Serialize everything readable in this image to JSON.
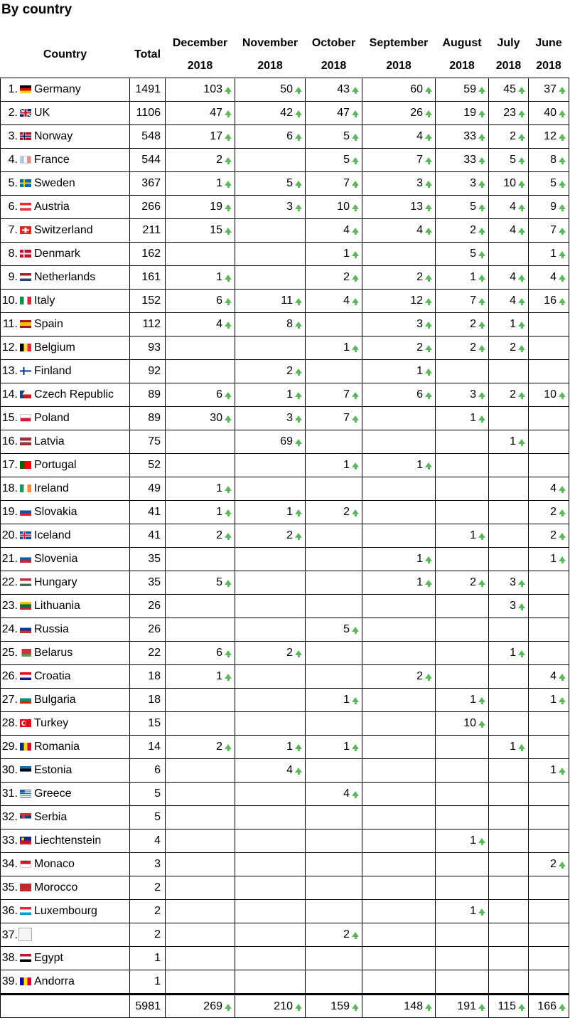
{
  "heading": "By country",
  "headers": {
    "country": "Country",
    "total": "Total",
    "months": [
      {
        "month": "December",
        "year": "2018"
      },
      {
        "month": "November",
        "year": "2018"
      },
      {
        "month": "October",
        "year": "2018"
      },
      {
        "month": "September",
        "year": "2018"
      },
      {
        "month": "August",
        "year": "2018"
      },
      {
        "month": "July",
        "year": "2018"
      },
      {
        "month": "June",
        "year": "2018"
      }
    ]
  },
  "rows": [
    {
      "rank": "1.",
      "name": "Germany",
      "flag": "germany",
      "total": "1491",
      "m": [
        "103",
        "50",
        "43",
        "60",
        "59",
        "45",
        "37"
      ]
    },
    {
      "rank": "2.",
      "name": "UK",
      "flag": "uk",
      "total": "1106",
      "m": [
        "47",
        "42",
        "47",
        "26",
        "19",
        "23",
        "40"
      ]
    },
    {
      "rank": "3.",
      "name": "Norway",
      "flag": "norway",
      "total": "548",
      "m": [
        "17",
        "6",
        "5",
        "4",
        "33",
        "2",
        "12"
      ]
    },
    {
      "rank": "4.",
      "name": "France",
      "flag": "france",
      "total": "544",
      "m": [
        "2",
        "",
        "5",
        "7",
        "33",
        "5",
        "8"
      ]
    },
    {
      "rank": "5.",
      "name": "Sweden",
      "flag": "sweden",
      "total": "367",
      "m": [
        "1",
        "5",
        "7",
        "3",
        "3",
        "10",
        "5"
      ]
    },
    {
      "rank": "6.",
      "name": "Austria",
      "flag": "austria",
      "total": "266",
      "m": [
        "19",
        "3",
        "10",
        "13",
        "5",
        "4",
        "9"
      ]
    },
    {
      "rank": "7.",
      "name": "Switzerland",
      "flag": "switzerland",
      "total": "211",
      "m": [
        "15",
        "",
        "4",
        "4",
        "2",
        "4",
        "7"
      ]
    },
    {
      "rank": "8.",
      "name": "Denmark",
      "flag": "denmark",
      "total": "162",
      "m": [
        "",
        "",
        "1",
        "",
        "5",
        "",
        "1"
      ]
    },
    {
      "rank": "9.",
      "name": "Netherlands",
      "flag": "netherlands",
      "total": "161",
      "m": [
        "1",
        "",
        "2",
        "2",
        "1",
        "4",
        "4"
      ]
    },
    {
      "rank": "10.",
      "name": "Italy",
      "flag": "italy",
      "total": "152",
      "m": [
        "6",
        "11",
        "4",
        "12",
        "7",
        "4",
        "16"
      ]
    },
    {
      "rank": "11.",
      "name": "Spain",
      "flag": "spain",
      "total": "112",
      "m": [
        "4",
        "8",
        "",
        "3",
        "2",
        "1",
        ""
      ]
    },
    {
      "rank": "12.",
      "name": "Belgium",
      "flag": "belgium",
      "total": "93",
      "m": [
        "",
        "",
        "1",
        "2",
        "2",
        "2",
        ""
      ]
    },
    {
      "rank": "13.",
      "name": "Finland",
      "flag": "finland",
      "total": "92",
      "m": [
        "",
        "2",
        "",
        "1",
        "",
        "",
        ""
      ]
    },
    {
      "rank": "14.",
      "name": "Czech Republic",
      "flag": "czech",
      "total": "89",
      "m": [
        "6",
        "1",
        "7",
        "6",
        "3",
        "2",
        "10"
      ]
    },
    {
      "rank": "15.",
      "name": "Poland",
      "flag": "poland",
      "total": "89",
      "m": [
        "30",
        "3",
        "7",
        "",
        "1",
        "",
        ""
      ]
    },
    {
      "rank": "16.",
      "name": "Latvia",
      "flag": "latvia",
      "total": "75",
      "m": [
        "",
        "69",
        "",
        "",
        "",
        "1",
        ""
      ]
    },
    {
      "rank": "17.",
      "name": "Portugal",
      "flag": "portugal",
      "total": "52",
      "m": [
        "",
        "",
        "1",
        "1",
        "",
        "",
        ""
      ]
    },
    {
      "rank": "18.",
      "name": "Ireland",
      "flag": "ireland",
      "total": "49",
      "m": [
        "1",
        "",
        "",
        "",
        "",
        "",
        "4"
      ]
    },
    {
      "rank": "19.",
      "name": "Slovakia",
      "flag": "slovakia",
      "total": "41",
      "m": [
        "1",
        "1",
        "2",
        "",
        "",
        "",
        "2"
      ]
    },
    {
      "rank": "20.",
      "name": "Iceland",
      "flag": "iceland",
      "total": "41",
      "m": [
        "2",
        "2",
        "",
        "",
        "1",
        "",
        "2"
      ]
    },
    {
      "rank": "21.",
      "name": "Slovenia",
      "flag": "slovenia",
      "total": "35",
      "m": [
        "",
        "",
        "",
        "1",
        "",
        "",
        "1"
      ]
    },
    {
      "rank": "22.",
      "name": "Hungary",
      "flag": "hungary",
      "total": "35",
      "m": [
        "5",
        "",
        "",
        "1",
        "2",
        "3",
        ""
      ]
    },
    {
      "rank": "23.",
      "name": "Lithuania",
      "flag": "lithuania",
      "total": "26",
      "m": [
        "",
        "",
        "",
        "",
        "",
        "3",
        ""
      ]
    },
    {
      "rank": "24.",
      "name": "Russia",
      "flag": "russia",
      "total": "26",
      "m": [
        "",
        "",
        "5",
        "",
        "",
        "",
        ""
      ]
    },
    {
      "rank": "25.",
      "name": "Belarus",
      "flag": "belarus",
      "total": "22",
      "m": [
        "6",
        "2",
        "",
        "",
        "",
        "1",
        ""
      ]
    },
    {
      "rank": "26.",
      "name": "Croatia",
      "flag": "croatia",
      "total": "18",
      "m": [
        "1",
        "",
        "",
        "2",
        "",
        "",
        "4"
      ]
    },
    {
      "rank": "27.",
      "name": "Bulgaria",
      "flag": "bulgaria",
      "total": "18",
      "m": [
        "",
        "",
        "1",
        "",
        "1",
        "",
        "1"
      ]
    },
    {
      "rank": "28.",
      "name": "Turkey",
      "flag": "turkey",
      "total": "15",
      "m": [
        "",
        "",
        "",
        "",
        "10",
        "",
        ""
      ]
    },
    {
      "rank": "29.",
      "name": "Romania",
      "flag": "romania",
      "total": "14",
      "m": [
        "2",
        "1",
        "1",
        "",
        "",
        "1",
        ""
      ]
    },
    {
      "rank": "30.",
      "name": "Estonia",
      "flag": "estonia",
      "total": "6",
      "m": [
        "",
        "4",
        "",
        "",
        "",
        "",
        "1"
      ]
    },
    {
      "rank": "31.",
      "name": "Greece",
      "flag": "greece",
      "total": "5",
      "m": [
        "",
        "",
        "4",
        "",
        "",
        "",
        ""
      ]
    },
    {
      "rank": "32.",
      "name": "Serbia",
      "flag": "serbia",
      "total": "5",
      "m": [
        "",
        "",
        "",
        "",
        "",
        "",
        ""
      ]
    },
    {
      "rank": "33.",
      "name": "Liechtenstein",
      "flag": "liechtenstein",
      "total": "4",
      "m": [
        "",
        "",
        "",
        "",
        "1",
        "",
        ""
      ]
    },
    {
      "rank": "34.",
      "name": "Monaco",
      "flag": "monaco",
      "total": "3",
      "m": [
        "",
        "",
        "",
        "",
        "",
        "",
        "2"
      ]
    },
    {
      "rank": "35.",
      "name": "Morocco",
      "flag": "morocco",
      "total": "2",
      "m": [
        "",
        "",
        "",
        "",
        "",
        "",
        ""
      ]
    },
    {
      "rank": "36.",
      "name": "Luxembourg",
      "flag": "luxembourg",
      "total": "2",
      "m": [
        "",
        "",
        "",
        "",
        "1",
        "",
        ""
      ]
    },
    {
      "rank": "37.",
      "name": "",
      "flag": "broken-image",
      "total": "2",
      "m": [
        "",
        "",
        "2",
        "",
        "",
        "",
        ""
      ]
    },
    {
      "rank": "38.",
      "name": "Egypt",
      "flag": "egypt",
      "total": "1",
      "m": [
        "",
        "",
        "",
        "",
        "",
        "",
        ""
      ]
    },
    {
      "rank": "39.",
      "name": "Andorra",
      "flag": "andorra",
      "total": "1",
      "m": [
        "",
        "",
        "",
        "",
        "",
        "",
        ""
      ]
    }
  ],
  "totals": {
    "total": "5981",
    "m": [
      "269",
      "210",
      "159",
      "148",
      "191",
      "115",
      "166"
    ]
  },
  "colors": {
    "arrow": "#5cb85c",
    "border": "#000000"
  }
}
